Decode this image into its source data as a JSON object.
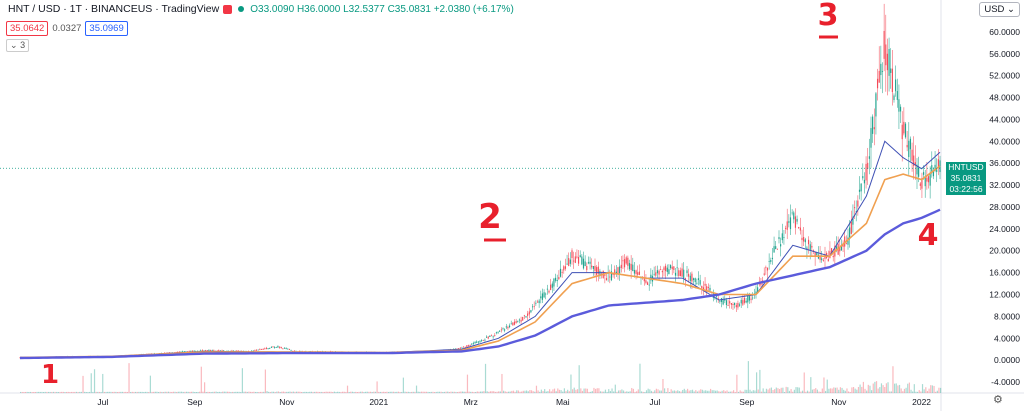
{
  "header": {
    "title": "HNT / USD · 1T · BINANCEUS · TradingView",
    "ohlc": "O33.0090 H36.0000 L32.5377 C35.0831 +2.0380 (+6.17%)"
  },
  "badges": {
    "bid": "35.0642",
    "spread": "0.0327",
    "ask": "35.0969"
  },
  "indicator_count": "3",
  "currency": "USD",
  "price_tag": {
    "symbol": "HNTUSD",
    "price": "35.0831",
    "countdown": "03:22:56"
  },
  "annotations": [
    "1",
    "2",
    "3",
    "4"
  ],
  "colors": {
    "up": "#089981",
    "down": "#f23645",
    "ma_short": "#3f51b5",
    "ma_mid": "#f0a050",
    "ma_long": "#5b5bdb",
    "annot": "#e8202c"
  },
  "chart_data": {
    "type": "line",
    "title": "HNT / USD · 1T · BINANCEUS",
    "x_tick_labels": [
      "Jul",
      "Sep",
      "Nov",
      "2021",
      "Mrz",
      "Mai",
      "Jul",
      "Sep",
      "Nov",
      "2022"
    ],
    "y_ticks": [
      -4,
      0,
      4,
      8,
      12,
      16,
      20,
      24,
      28,
      32,
      36,
      40,
      44,
      48,
      52,
      56,
      60
    ],
    "ylim": [
      -6,
      64
    ],
    "grid": false,
    "current_price": 35.0831,
    "series": [
      {
        "name": "HNTUSD",
        "x": [
          0,
          5,
          10,
          15,
          20,
          25,
          28,
          30,
          35,
          40,
          45,
          48,
          50,
          52,
          55,
          58,
          60,
          62,
          64,
          66,
          68,
          70,
          72,
          74,
          76,
          78,
          80,
          82,
          84,
          86,
          88,
          90,
          92,
          94,
          96,
          98,
          100
        ],
        "values": [
          0.5,
          0.6,
          0.7,
          1.2,
          1.8,
          1.6,
          2.5,
          1.6,
          1.5,
          1.4,
          1.5,
          2.2,
          3.5,
          5,
          8,
          14,
          19,
          17,
          15,
          18,
          14,
          17,
          16,
          14,
          11,
          10,
          12,
          20,
          26,
          20,
          19,
          22,
          35,
          58,
          42,
          33,
          35
        ]
      },
      {
        "name": "MA short",
        "x": [
          0,
          10,
          20,
          30,
          40,
          48,
          52,
          56,
          60,
          64,
          68,
          72,
          76,
          80,
          84,
          88,
          92,
          94,
          96,
          98,
          100
        ],
        "values": [
          0.5,
          0.7,
          1.6,
          1.5,
          1.4,
          2,
          4,
          8,
          16,
          16,
          15,
          15,
          11,
          12,
          21,
          19,
          30,
          40,
          37,
          35,
          38
        ]
      },
      {
        "name": "MA mid",
        "x": [
          0,
          10,
          20,
          30,
          40,
          48,
          52,
          56,
          60,
          64,
          68,
          72,
          76,
          80,
          84,
          88,
          92,
          94,
          96,
          98,
          100
        ],
        "values": [
          0.5,
          0.7,
          1.5,
          1.5,
          1.4,
          1.8,
          3.5,
          7,
          14,
          16,
          15,
          14,
          12,
          12,
          19,
          19,
          25,
          33,
          34,
          33,
          35.5
        ]
      },
      {
        "name": "MA long",
        "x": [
          0,
          10,
          20,
          30,
          40,
          48,
          52,
          56,
          60,
          64,
          68,
          72,
          76,
          80,
          84,
          88,
          92,
          94,
          96,
          98,
          100
        ],
        "values": [
          0.4,
          0.6,
          1.2,
          1.3,
          1.3,
          1.6,
          2.5,
          4.5,
          8,
          10,
          10.5,
          11,
          12,
          14,
          15.5,
          17,
          20,
          23,
          25,
          26,
          27.5
        ]
      }
    ]
  }
}
